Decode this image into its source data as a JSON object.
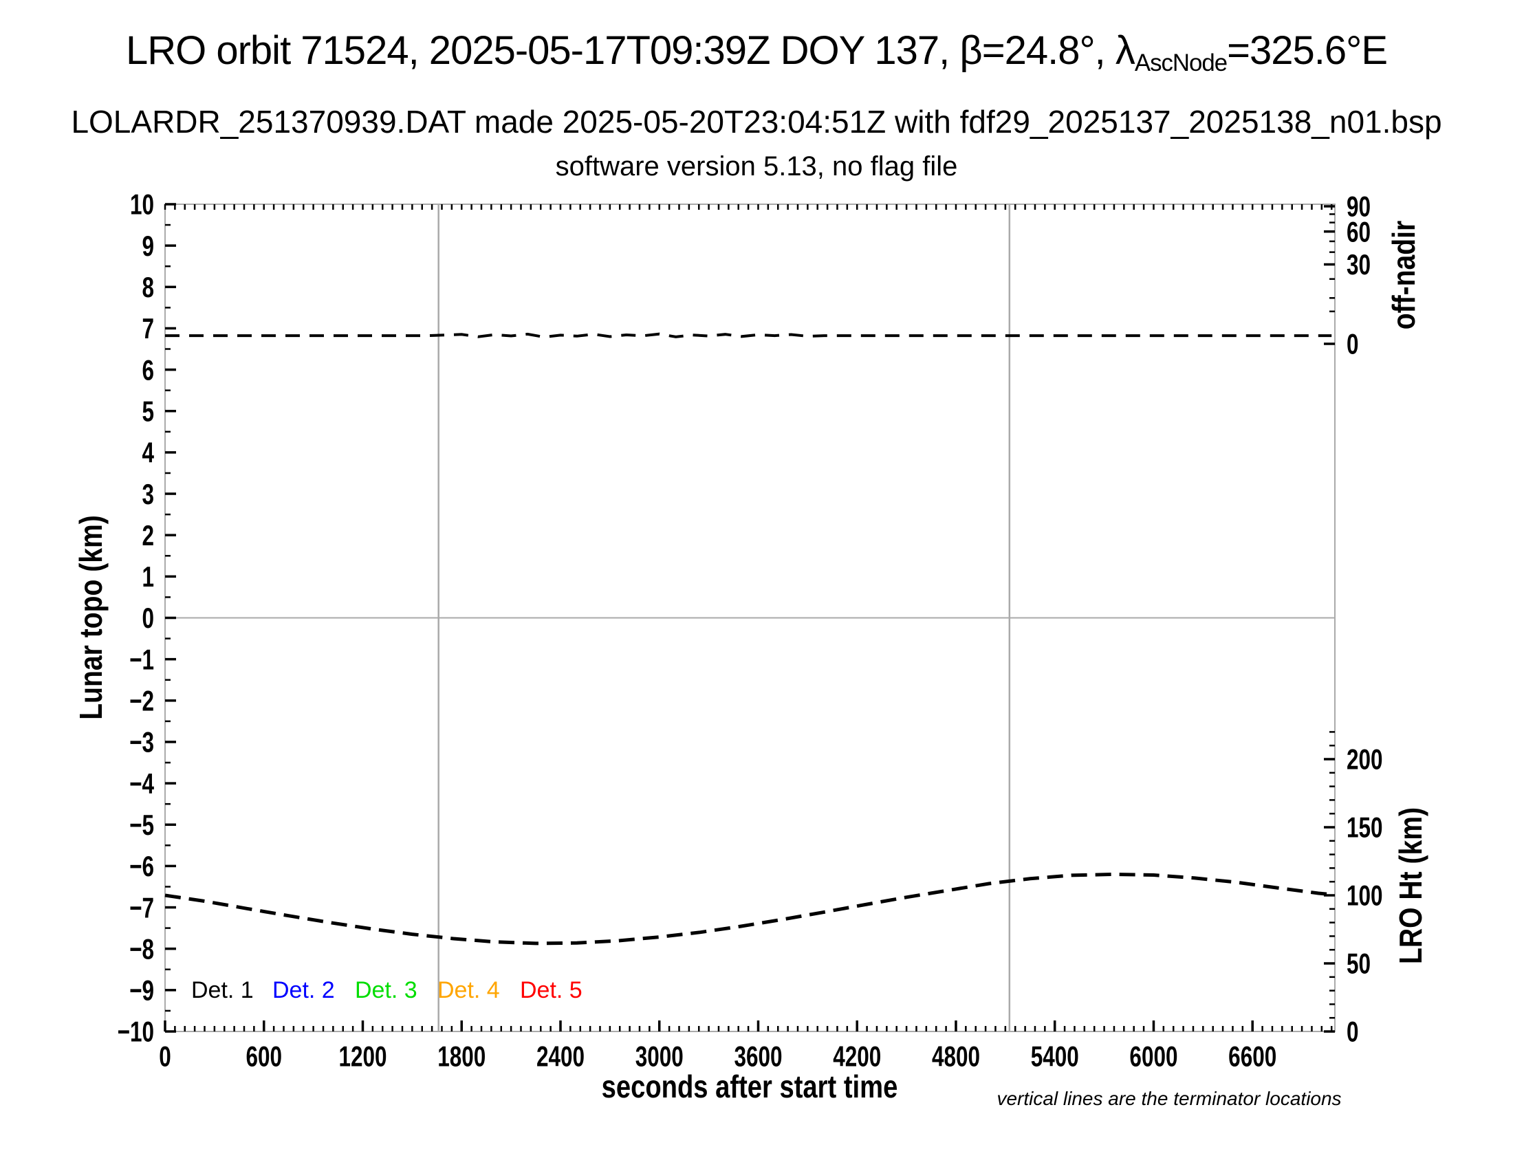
{
  "header": {
    "title_pre": "LRO orbit 71524, 2025-05-17T09:39Z DOY 137, β=24.8°, λ",
    "title_sub": "AscNode",
    "title_post": "=325.6°E",
    "subtitle": "LOLARDR_251370939.DAT made 2025-05-20T23:04:51Z with fdf29_2025137_2025138_n01.bsp",
    "version_line": "software version 5.13, no flag file"
  },
  "chart_data": {
    "type": "line",
    "title": "LRO orbit 71524, 2025-05-17T09:39Z DOY 137, β=24.8°, λAscNode=325.6°E",
    "xlabel": "seconds after start time",
    "ylabel_left": "Lunar topo (km)",
    "ylabel_right_top": "off-nadir",
    "ylabel_right_bottom": "LRO Ht (km)",
    "xlim": [
      0,
      7100
    ],
    "ylim_left": [
      -10,
      10
    ],
    "x_major_ticks": [
      0,
      600,
      1200,
      1800,
      2400,
      3000,
      3600,
      4200,
      4800,
      5400,
      6000,
      6600
    ],
    "x_minor_step_sec": 60,
    "left_major_step_km": 1,
    "left_minor_step_km": 0.5,
    "off_nadir_axis_scale": "sqrt",
    "off_nadir_ticks_deg": [
      90,
      60,
      30,
      0
    ],
    "off_nadir_minor_ticks_deg": [
      5,
      10,
      20,
      40,
      50,
      70,
      80
    ],
    "lro_ht_ticks_km": [
      0,
      50,
      100,
      150,
      200
    ],
    "lro_ht_minor_step_km": 10,
    "lro_ht_minor_max_km": 220,
    "terminator_times_sec": [
      1660,
      5125
    ],
    "zero_line_topo_km": 0,
    "frame_color": "#aaaaaa",
    "grid_color": "#aaaaaa",
    "tick_color": "#000000",
    "note": "vertical lines are the terminator locations",
    "legend": {
      "items": [
        {
          "label": "Det. 1",
          "color": "#000000"
        },
        {
          "label": "Det. 2",
          "color": "#0000ff"
        },
        {
          "label": "Det. 3",
          "color": "#00dd00"
        },
        {
          "label": "Det. 4",
          "color": "#ffa500"
        },
        {
          "label": "Det. 5",
          "color": "#ff0000"
        }
      ]
    },
    "series": [
      {
        "name": "spacecraft off-nadir angle",
        "axis": "off_nadir_deg",
        "color": "#000000",
        "line_style": "dashed",
        "points": [
          [
            0,
            0.32
          ],
          [
            200,
            0.32
          ],
          [
            400,
            0.32
          ],
          [
            600,
            0.32
          ],
          [
            800,
            0.32
          ],
          [
            1000,
            0.32
          ],
          [
            1200,
            0.32
          ],
          [
            1400,
            0.32
          ],
          [
            1600,
            0.32
          ],
          [
            1800,
            0.42
          ],
          [
            1900,
            0.24
          ],
          [
            2000,
            0.4
          ],
          [
            2100,
            0.3
          ],
          [
            2200,
            0.45
          ],
          [
            2300,
            0.22
          ],
          [
            2400,
            0.36
          ],
          [
            2500,
            0.28
          ],
          [
            2600,
            0.44
          ],
          [
            2700,
            0.25
          ],
          [
            2800,
            0.38
          ],
          [
            2900,
            0.31
          ],
          [
            3000,
            0.46
          ],
          [
            3100,
            0.23
          ],
          [
            3200,
            0.37
          ],
          [
            3300,
            0.29
          ],
          [
            3400,
            0.43
          ],
          [
            3500,
            0.26
          ],
          [
            3600,
            0.39
          ],
          [
            3700,
            0.32
          ],
          [
            3800,
            0.41
          ],
          [
            3900,
            0.27
          ],
          [
            4000,
            0.32
          ],
          [
            4200,
            0.32
          ],
          [
            4400,
            0.32
          ],
          [
            4600,
            0.32
          ],
          [
            4800,
            0.32
          ],
          [
            5000,
            0.32
          ],
          [
            5200,
            0.32
          ],
          [
            5400,
            0.32
          ],
          [
            5600,
            0.32
          ],
          [
            5800,
            0.32
          ],
          [
            6000,
            0.32
          ],
          [
            6200,
            0.32
          ],
          [
            6400,
            0.32
          ],
          [
            6600,
            0.32
          ],
          [
            6800,
            0.32
          ],
          [
            7000,
            0.32
          ],
          [
            7080,
            0.32
          ]
        ]
      },
      {
        "name": "LRO height above surface",
        "axis": "lro_ht_km",
        "color": "#000000",
        "line_style": "dashed",
        "points": [
          [
            0,
            100.0
          ],
          [
            250,
            95.5
          ],
          [
            500,
            90.2
          ],
          [
            750,
            85.0
          ],
          [
            1000,
            80.0
          ],
          [
            1250,
            75.4
          ],
          [
            1500,
            71.4
          ],
          [
            1750,
            68.2
          ],
          [
            2000,
            65.8
          ],
          [
            2250,
            64.7
          ],
          [
            2500,
            65.0
          ],
          [
            2750,
            66.6
          ],
          [
            3000,
            69.4
          ],
          [
            3250,
            72.9
          ],
          [
            3500,
            77.3
          ],
          [
            3750,
            82.3
          ],
          [
            4000,
            87.7
          ],
          [
            4250,
            93.2
          ],
          [
            4500,
            98.6
          ],
          [
            4750,
            103.6
          ],
          [
            5000,
            108.6
          ],
          [
            5250,
            112.2
          ],
          [
            5500,
            114.7
          ],
          [
            5750,
            115.4
          ],
          [
            6000,
            114.9
          ],
          [
            6250,
            112.7
          ],
          [
            6500,
            109.6
          ],
          [
            6750,
            105.5
          ],
          [
            7000,
            101.5
          ],
          [
            7100,
            100.4
          ]
        ]
      }
    ]
  }
}
